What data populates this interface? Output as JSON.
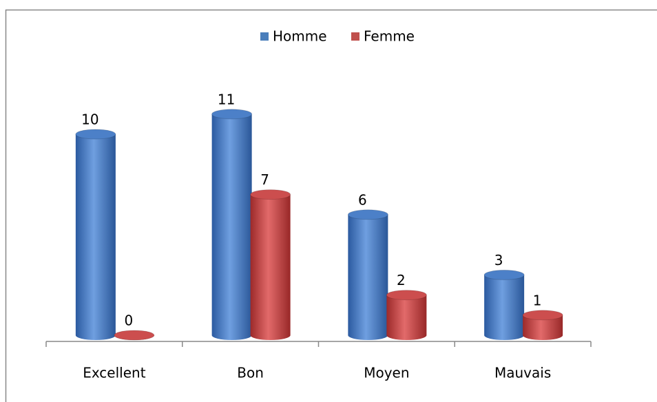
{
  "chart_data": {
    "type": "bar",
    "categories": [
      "Excellent",
      "Bon",
      "Moyen",
      "Mauvais"
    ],
    "series": [
      {
        "name": "Homme",
        "color": "#4a7ebb",
        "values": [
          10,
          11,
          6,
          3
        ]
      },
      {
        "name": "Femme",
        "color": "#c0504d",
        "values": [
          0,
          7,
          2,
          1
        ]
      }
    ],
    "legend": "top"
  }
}
